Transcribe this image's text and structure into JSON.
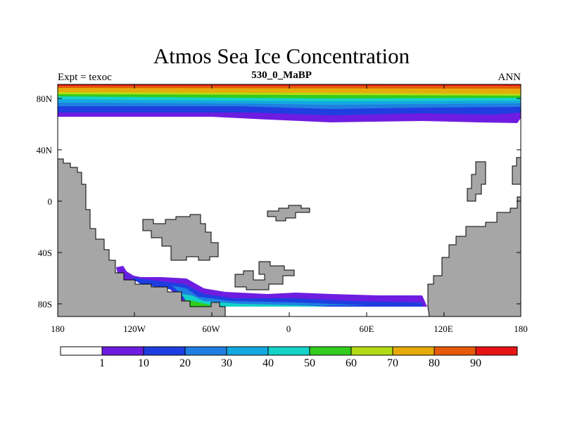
{
  "title": "Atmos Sea Ice Concentration",
  "subtitle": "530_0_MaBP",
  "left_label": "Expt = texoc",
  "right_label": "ANN",
  "y_ticks": [
    "80N",
    "40N",
    "0",
    "40S",
    "80S"
  ],
  "x_ticks": [
    "180",
    "120W",
    "60W",
    "0",
    "60E",
    "120E",
    "180"
  ],
  "colorbar": {
    "labels": [
      "1",
      "10",
      "20",
      "30",
      "40",
      "50",
      "60",
      "70",
      "80",
      "90"
    ],
    "colors": [
      "#ffffff",
      "#6e1de0",
      "#1f3ee0",
      "#1f7fe0",
      "#14a8e0",
      "#14d2c8",
      "#32cc1e",
      "#b4dc14",
      "#e6aa0a",
      "#e65a0a",
      "#e61414"
    ]
  },
  "colors": {
    "land": "#a6a6a6",
    "ocean": "#ffffff"
  }
}
